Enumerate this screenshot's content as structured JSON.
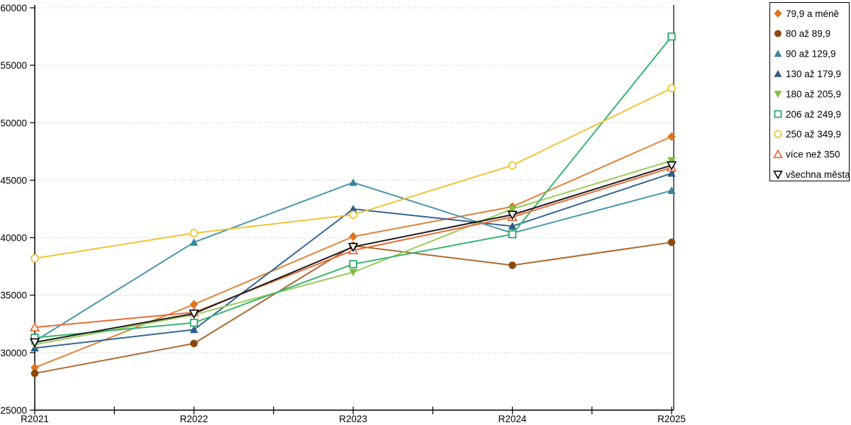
{
  "chart_data": {
    "type": "line",
    "title": "",
    "xlabel": "",
    "ylabel": "",
    "categories": [
      "R2021",
      "R2022",
      "R2023",
      "R2024",
      "R2025"
    ],
    "ylim": [
      25000,
      60000
    ],
    "y_axis": {
      "min": 25000,
      "max": 60000,
      "step": 5000,
      "tick_labels": [
        "25000",
        "30000",
        "35000",
        "40000",
        "45000",
        "50000",
        "55000",
        "60000"
      ]
    },
    "grid": "horizontal-dotted",
    "legend_position": "top-right",
    "colors": {
      "background": "#ffffff",
      "grid": "#c8c8c8",
      "axis": "#000000",
      "legend_border": "#000000",
      "legend_background": "#ffffff"
    },
    "series": [
      {
        "name": "79,9 a méně",
        "marker": "diamond",
        "open": false,
        "color": "#E0741C",
        "line_color": "#E2823A",
        "values": [
          28700,
          34200,
          40100,
          42700,
          48800
        ]
      },
      {
        "name": "80 až 89,9",
        "marker": "circle",
        "open": false,
        "color": "#8C4A11",
        "line_color": "#AB6A33",
        "values": [
          28200,
          30800,
          39300,
          37600,
          39600
        ]
      },
      {
        "name": "90 až 129,9",
        "marker": "triangle-up",
        "open": false,
        "color": "#3884A1",
        "line_color": "#4C96AD",
        "values": [
          31000,
          39600,
          44800,
          40400,
          44100
        ]
      },
      {
        "name": "130 až 179,9",
        "marker": "triangle-up",
        "open": false,
        "color": "#2C5D8A",
        "line_color": "#356592",
        "values": [
          30400,
          32000,
          42500,
          41000,
          45600
        ]
      },
      {
        "name": "180 až 205,9",
        "marker": "triangle-down",
        "open": false,
        "color": "#85BD3C",
        "line_color": "#9ACB58",
        "values": [
          30700,
          33300,
          37000,
          42500,
          46700
        ]
      },
      {
        "name": "206 až 249,9",
        "marker": "square",
        "open": true,
        "color": "#17A35B",
        "line_color": "#38B570",
        "values": [
          31300,
          32600,
          37700,
          40300,
          57500
        ]
      },
      {
        "name": "250 až 349,9",
        "marker": "circle",
        "open": true,
        "color": "#F3C11B",
        "line_color": "#EFC434",
        "values": [
          38200,
          40400,
          42000,
          46300,
          53000
        ]
      },
      {
        "name": "více než 350",
        "marker": "triangle-up",
        "open": true,
        "color": "#EB5F2E",
        "line_color": "#EB6A35",
        "values": [
          32200,
          33500,
          38900,
          41800,
          46100
        ]
      },
      {
        "name": "všechna města",
        "marker": "triangle-down",
        "open": true,
        "color": "#000000",
        "line_color": "#1a1a1a",
        "values": [
          30900,
          33400,
          39200,
          42000,
          46300
        ]
      }
    ]
  }
}
